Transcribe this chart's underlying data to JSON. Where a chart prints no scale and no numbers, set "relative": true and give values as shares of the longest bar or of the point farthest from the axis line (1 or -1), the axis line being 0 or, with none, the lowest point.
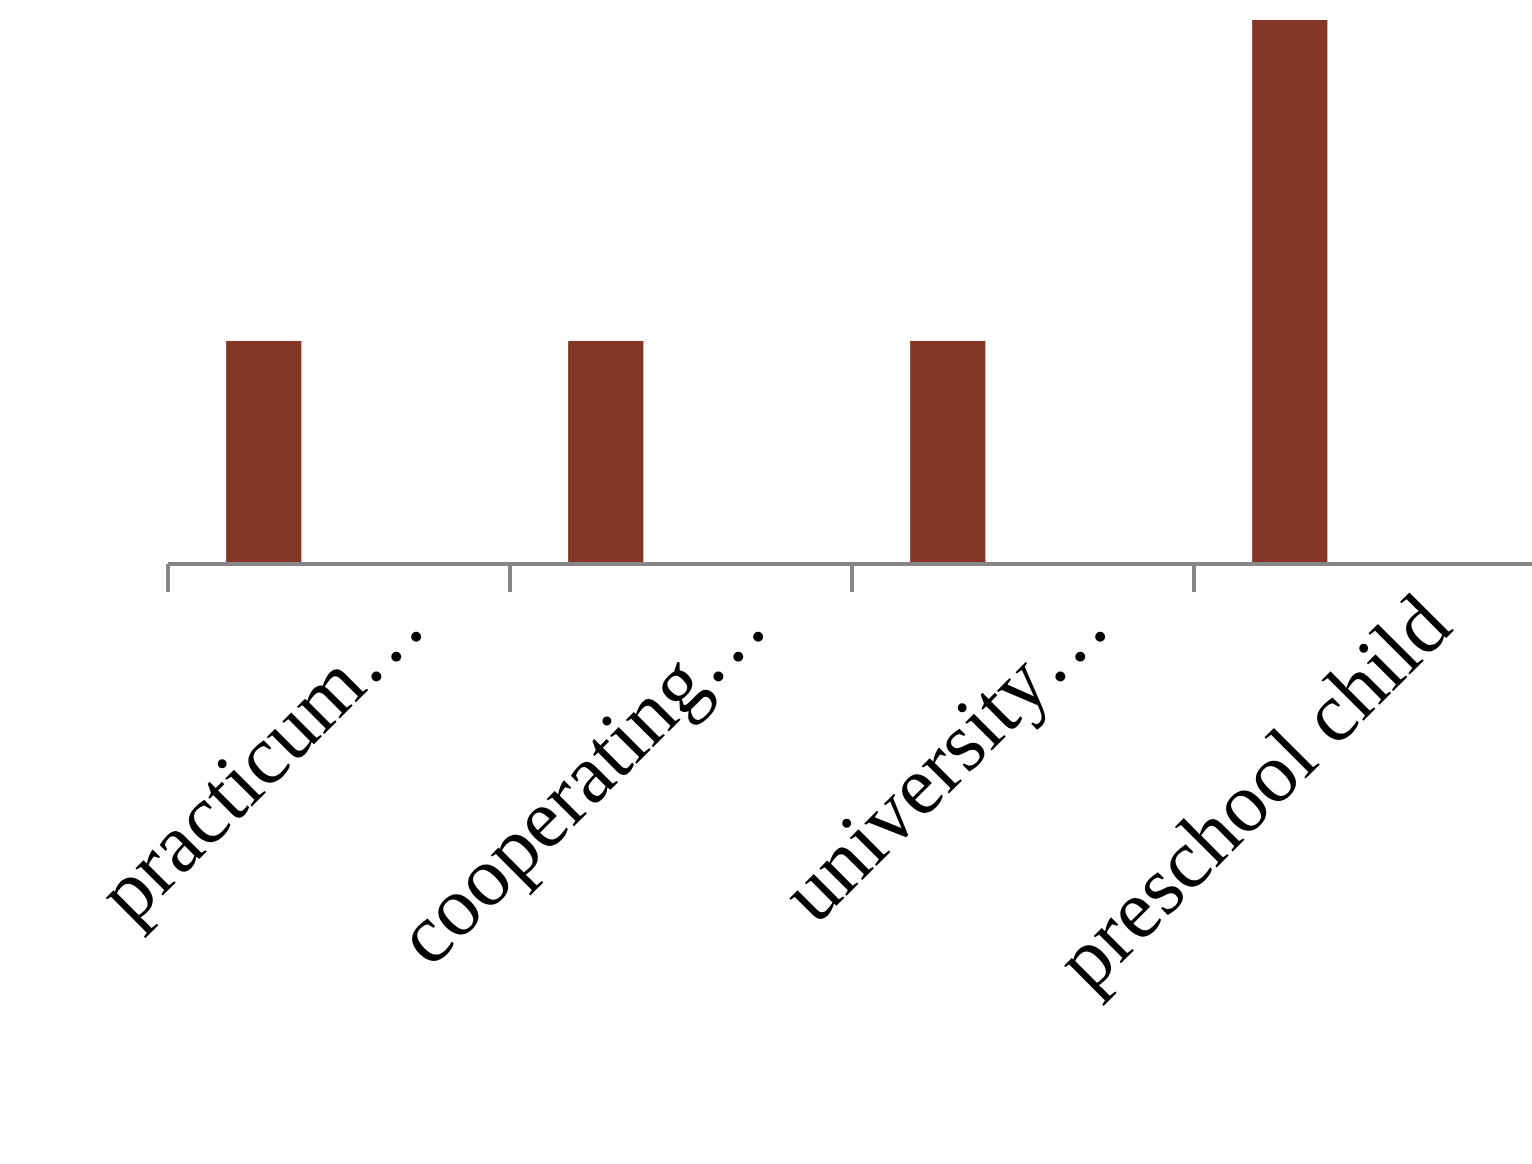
{
  "chart_data": {
    "type": "bar",
    "relative": true,
    "categories": [
      "practicum…",
      "cooperating…",
      "university…",
      "preschool child"
    ],
    "values": [
      0.41,
      0.41,
      0.41,
      1
    ],
    "color": "#843726"
  }
}
